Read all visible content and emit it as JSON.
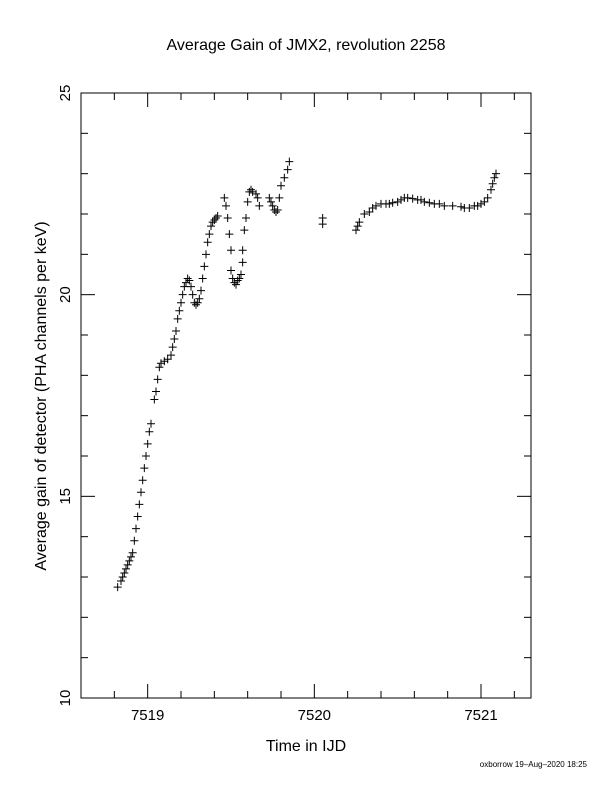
{
  "chart_data": {
    "type": "scatter",
    "title": "Average Gain of JMX2, revolution 2258",
    "xlabel": "Time in IJD",
    "ylabel": "Average gain of detector (PHA channels per keV)",
    "xlim": [
      7518.6,
      7521.3
    ],
    "ylim": [
      10,
      25
    ],
    "x_ticks": [
      "7519",
      "7520",
      "7521"
    ],
    "y_ticks": [
      "10",
      "15",
      "20",
      "25"
    ],
    "grid": false,
    "marker": "+",
    "color": "#000000",
    "series": [
      {
        "points": [
          [
            7518.82,
            12.75
          ],
          [
            7518.84,
            12.9
          ],
          [
            7518.85,
            13.0
          ],
          [
            7518.86,
            13.1
          ],
          [
            7518.87,
            13.2
          ],
          [
            7518.88,
            13.3
          ],
          [
            7518.89,
            13.4
          ],
          [
            7518.9,
            13.5
          ],
          [
            7518.91,
            13.6
          ],
          [
            7518.92,
            13.9
          ],
          [
            7518.93,
            14.2
          ],
          [
            7518.94,
            14.5
          ],
          [
            7518.95,
            14.8
          ],
          [
            7518.96,
            15.1
          ],
          [
            7518.97,
            15.4
          ],
          [
            7518.98,
            15.7
          ],
          [
            7518.99,
            16.0
          ],
          [
            7519.0,
            16.3
          ],
          [
            7519.01,
            16.6
          ],
          [
            7519.02,
            16.8
          ],
          [
            7519.04,
            17.4
          ],
          [
            7519.05,
            17.6
          ],
          [
            7519.06,
            17.9
          ],
          [
            7519.07,
            18.2
          ],
          [
            7519.08,
            18.3
          ],
          [
            7519.1,
            18.35
          ],
          [
            7519.12,
            18.4
          ],
          [
            7519.14,
            18.5
          ],
          [
            7519.15,
            18.7
          ],
          [
            7519.16,
            18.9
          ],
          [
            7519.17,
            19.1
          ],
          [
            7519.18,
            19.4
          ],
          [
            7519.19,
            19.6
          ],
          [
            7519.2,
            19.8
          ],
          [
            7519.21,
            20.0
          ],
          [
            7519.22,
            20.2
          ],
          [
            7519.23,
            20.3
          ],
          [
            7519.24,
            20.4
          ],
          [
            7519.25,
            20.35
          ],
          [
            7519.26,
            20.2
          ],
          [
            7519.27,
            20.0
          ],
          [
            7519.28,
            19.8
          ],
          [
            7519.29,
            19.75
          ],
          [
            7519.3,
            19.8
          ],
          [
            7519.31,
            19.9
          ],
          [
            7519.32,
            20.1
          ],
          [
            7519.33,
            20.4
          ],
          [
            7519.34,
            20.7
          ],
          [
            7519.35,
            21.0
          ],
          [
            7519.36,
            21.3
          ],
          [
            7519.37,
            21.5
          ],
          [
            7519.38,
            21.7
          ],
          [
            7519.39,
            21.8
          ],
          [
            7519.4,
            21.85
          ],
          [
            7519.41,
            21.9
          ],
          [
            7519.42,
            21.95
          ],
          [
            7519.46,
            22.4
          ],
          [
            7519.47,
            22.2
          ],
          [
            7519.48,
            21.9
          ],
          [
            7519.49,
            21.5
          ],
          [
            7519.5,
            21.1
          ],
          [
            7519.5,
            20.6
          ],
          [
            7519.51,
            20.4
          ],
          [
            7519.52,
            20.3
          ],
          [
            7519.53,
            20.25
          ],
          [
            7519.54,
            20.35
          ],
          [
            7519.55,
            20.4
          ],
          [
            7519.56,
            20.5
          ],
          [
            7519.57,
            20.8
          ],
          [
            7519.57,
            21.1
          ],
          [
            7519.58,
            21.6
          ],
          [
            7519.59,
            21.9
          ],
          [
            7519.6,
            22.3
          ],
          [
            7519.61,
            22.55
          ],
          [
            7519.62,
            22.6
          ],
          [
            7519.63,
            22.55
          ],
          [
            7519.65,
            22.5
          ],
          [
            7519.66,
            22.4
          ],
          [
            7519.67,
            22.2
          ],
          [
            7519.73,
            22.4
          ],
          [
            7519.74,
            22.3
          ],
          [
            7519.75,
            22.2
          ],
          [
            7519.76,
            22.1
          ],
          [
            7519.77,
            22.05
          ],
          [
            7519.78,
            22.1
          ],
          [
            7519.79,
            22.4
          ],
          [
            7519.8,
            22.7
          ],
          [
            7519.82,
            22.9
          ],
          [
            7519.84,
            23.1
          ],
          [
            7519.85,
            23.3
          ],
          [
            7520.05,
            21.9
          ],
          [
            7520.05,
            21.75
          ],
          [
            7520.25,
            21.6
          ],
          [
            7520.26,
            21.7
          ],
          [
            7520.27,
            21.8
          ],
          [
            7520.3,
            22.0
          ],
          [
            7520.33,
            22.05
          ],
          [
            7520.35,
            22.15
          ],
          [
            7520.37,
            22.2
          ],
          [
            7520.4,
            22.25
          ],
          [
            7520.43,
            22.25
          ],
          [
            7520.45,
            22.25
          ],
          [
            7520.47,
            22.28
          ],
          [
            7520.5,
            22.3
          ],
          [
            7520.52,
            22.35
          ],
          [
            7520.54,
            22.4
          ],
          [
            7520.56,
            22.4
          ],
          [
            7520.59,
            22.38
          ],
          [
            7520.62,
            22.35
          ],
          [
            7520.64,
            22.35
          ],
          [
            7520.66,
            22.3
          ],
          [
            7520.69,
            22.28
          ],
          [
            7520.72,
            22.25
          ],
          [
            7520.75,
            22.25
          ],
          [
            7520.78,
            22.2
          ],
          [
            7520.83,
            22.2
          ],
          [
            7520.88,
            22.18
          ],
          [
            7520.9,
            22.15
          ],
          [
            7520.93,
            22.15
          ],
          [
            7520.96,
            22.2
          ],
          [
            7520.98,
            22.2
          ],
          [
            7521.0,
            22.25
          ],
          [
            7521.02,
            22.3
          ],
          [
            7521.04,
            22.4
          ],
          [
            7521.06,
            22.6
          ],
          [
            7521.07,
            22.75
          ],
          [
            7521.08,
            22.9
          ],
          [
            7521.09,
            23.0
          ]
        ]
      }
    ]
  },
  "footer": "oxborrow 19–Aug–2020 18:25"
}
